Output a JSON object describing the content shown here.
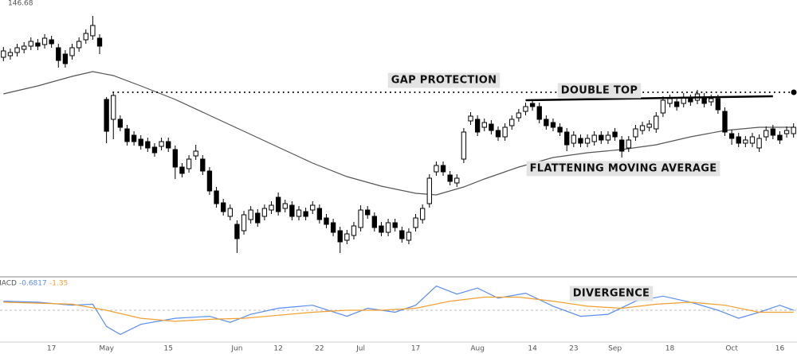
{
  "chart_data": [
    {
      "type": "candlestick",
      "price_label": 146.68,
      "categories": [
        null,
        null,
        null,
        null,
        null,
        null,
        null,
        "17",
        null,
        null,
        null,
        null,
        null,
        null,
        null,
        "May",
        null,
        null,
        null,
        null,
        null,
        null,
        null,
        null,
        "15",
        null,
        null,
        null,
        null,
        null,
        null,
        null,
        null,
        null,
        "Jun",
        null,
        null,
        null,
        null,
        null,
        "12",
        null,
        null,
        null,
        null,
        null,
        "22",
        null,
        null,
        null,
        null,
        null,
        "Jul",
        null,
        null,
        null,
        null,
        null,
        null,
        null,
        "17",
        null,
        null,
        null,
        null,
        null,
        null,
        null,
        null,
        "Aug",
        null,
        null,
        null,
        null,
        null,
        null,
        null,
        "14",
        null,
        null,
        null,
        null,
        null,
        "23",
        null,
        null,
        null,
        null,
        null,
        "Sep",
        null,
        null,
        null,
        null,
        null,
        null,
        null,
        "18",
        null,
        null,
        null,
        null,
        null,
        null,
        null,
        null,
        "Oct",
        null,
        null,
        null,
        null,
        null,
        null,
        "16",
        null,
        null
      ],
      "open": [
        157.8,
        158.0,
        158.4,
        158.8,
        159.2,
        159.6,
        159.4,
        160.0,
        159.0,
        158.2,
        158.0,
        159.0,
        160.0,
        160.5,
        160.2,
        152.5,
        150.0,
        150.0,
        148.8,
        148.0,
        147.5,
        147.2,
        146.5,
        146.6,
        147.2,
        146.2,
        144.0,
        143.8,
        145.4,
        145.0,
        143.5,
        141.0,
        139.5,
        137.8,
        136.8,
        136.0,
        137.4,
        138.2,
        137.8,
        138.6,
        140.2,
        138.8,
        139.2,
        137.8,
        138.4,
        138.6,
        138.8,
        137.6,
        137.0,
        136.0,
        134.8,
        135.4,
        136.4,
        138.6,
        137.8,
        136.6,
        135.8,
        137.0,
        136.0,
        134.8,
        136.4,
        137.4,
        139.4,
        143.4,
        144.2,
        143.0,
        142.0,
        145.0,
        149.8,
        150.0,
        149.0,
        149.4,
        148.6,
        147.8,
        149.2,
        150.2,
        151.0,
        152.0,
        151.6,
        150.0,
        149.6,
        149.0,
        148.4,
        147.0,
        147.6,
        147.0,
        147.2,
        148.0,
        147.4,
        148.4,
        147.4,
        146.4,
        147.8,
        148.6,
        149.0,
        148.8,
        150.8,
        152.0,
        152.2,
        152.0,
        152.6,
        152.4,
        152.8,
        152.2,
        152.6,
        151.0,
        148.2,
        147.8,
        147.0,
        147.0,
        146.4,
        147.8,
        148.8,
        148.0,
        148.2,
        148.2
      ],
      "high": [
        159.1,
        158.9,
        159.5,
        159.7,
        160.3,
        160.1,
        160.7,
        160.5,
        159.5,
        158.7,
        159.5,
        160.3,
        161.3,
        163.0,
        160.7,
        152.8,
        153.5,
        150.5,
        149.3,
        148.5,
        148.0,
        147.7,
        147.0,
        147.7,
        147.7,
        146.7,
        144.5,
        145.5,
        146.8,
        145.5,
        144.0,
        141.5,
        140.0,
        139.3,
        137.3,
        138.5,
        139.1,
        138.7,
        139.3,
        139.7,
        140.8,
        139.9,
        139.7,
        139.1,
        138.9,
        139.7,
        139.3,
        138.1,
        137.5,
        136.5,
        136.1,
        137.1,
        139.2,
        139.1,
        138.3,
        137.1,
        137.5,
        137.5,
        136.5,
        136.3,
        138.1,
        139.3,
        143.1,
        144.7,
        144.7,
        143.5,
        143.1,
        148.9,
        150.9,
        150.5,
        150.1,
        149.9,
        149.1,
        149.5,
        150.5,
        151.3,
        152.1,
        152.5,
        152.1,
        150.5,
        150.1,
        149.5,
        148.9,
        148.5,
        148.1,
        148.1,
        148.5,
        148.5,
        148.5,
        148.9,
        147.9,
        147.9,
        149.3,
        149.7,
        149.9,
        150.9,
        152.9,
        153.1,
        152.7,
        153.3,
        153.1,
        153.7,
        153.3,
        153.1,
        153.1,
        151.5,
        148.7,
        148.3,
        147.9,
        148.3,
        148.1,
        149.1,
        149.3,
        148.5,
        149.1,
        149.5
      ],
      "low": [
        157.3,
        157.5,
        157.9,
        158.3,
        158.7,
        158.7,
        158.9,
        159.0,
        156.5,
        156.5,
        157.5,
        158.5,
        159.5,
        160.0,
        158.2,
        147.0,
        147.5,
        148.5,
        146.7,
        146.7,
        146.2,
        145.9,
        145.3,
        146.1,
        145.9,
        142.5,
        142.7,
        143.3,
        144.9,
        143.0,
        140.5,
        138.9,
        137.9,
        137.3,
        133.2,
        135.5,
        136.9,
        136.5,
        137.3,
        138.1,
        137.9,
        138.3,
        137.3,
        137.3,
        137.3,
        138.1,
        136.9,
        136.3,
        135.3,
        133.2,
        134.3,
        134.9,
        135.9,
        137.5,
        135.9,
        135.3,
        135.3,
        135.9,
        134.5,
        134.3,
        135.9,
        136.9,
        138.9,
        142.9,
        142.9,
        141.7,
        141.5,
        144.5,
        149.3,
        147.9,
        148.5,
        148.1,
        147.3,
        147.3,
        148.7,
        149.7,
        150.5,
        151.1,
        149.5,
        148.7,
        148.5,
        147.9,
        146.0,
        146.5,
        146.5,
        146.5,
        146.7,
        146.9,
        146.9,
        147.3,
        145.2,
        145.9,
        147.3,
        148.1,
        148.5,
        148.3,
        150.3,
        151.5,
        151.1,
        151.5,
        151.7,
        151.9,
        151.5,
        151.7,
        150.7,
        147.9,
        146.8,
        146.5,
        146.5,
        146.5,
        145.9,
        147.3,
        147.5,
        146.9,
        147.7,
        147.7
      ],
      "close": [
        158.6,
        158.4,
        159.0,
        159.2,
        159.8,
        159.2,
        160.2,
        159.5,
        157.4,
        157.0,
        159.0,
        159.8,
        160.8,
        161.8,
        159.2,
        148.5,
        153.0,
        149.0,
        147.2,
        147.2,
        146.7,
        146.4,
        145.8,
        147.2,
        146.4,
        144.0,
        143.2,
        145.0,
        146.0,
        143.5,
        141.0,
        139.4,
        138.4,
        138.8,
        135.0,
        138.0,
        138.6,
        137.0,
        138.8,
        139.2,
        138.4,
        139.4,
        137.8,
        138.6,
        137.8,
        139.2,
        137.4,
        136.8,
        135.8,
        134.6,
        135.6,
        136.6,
        138.6,
        138.0,
        136.4,
        135.8,
        137.0,
        136.4,
        135.0,
        135.8,
        137.6,
        138.8,
        142.6,
        144.2,
        143.4,
        142.2,
        142.6,
        148.4,
        150.4,
        148.4,
        149.6,
        148.6,
        147.8,
        149.0,
        150.0,
        150.8,
        151.6,
        151.6,
        150.0,
        149.2,
        149.0,
        148.4,
        146.8,
        148.0,
        147.0,
        147.6,
        148.0,
        147.4,
        148.0,
        147.8,
        146.0,
        147.4,
        148.8,
        149.2,
        149.4,
        150.4,
        152.4,
        152.6,
        151.6,
        152.8,
        152.2,
        153.2,
        152.0,
        152.6,
        151.2,
        148.4,
        147.6,
        147.0,
        147.4,
        147.8,
        147.6,
        148.6,
        148.0,
        147.4,
        148.6,
        149.0
      ],
      "xlim": [
        -0.5,
        115.5
      ],
      "ylim": [
        130,
        165
      ],
      "candle_colors": {
        "up": "#ffffff",
        "down": "#000000",
        "outline": "#000000"
      },
      "moving_average": {
        "color": "#555555",
        "x": [
          0,
          5,
          10,
          13,
          16,
          20,
          25,
          30,
          35,
          40,
          45,
          50,
          55,
          60,
          63,
          67,
          70,
          75,
          80,
          85,
          90,
          95,
          100,
          105,
          110,
          115
        ],
        "values": [
          153.2,
          154.2,
          155.4,
          156.0,
          155.5,
          154.2,
          152.5,
          150.5,
          148.5,
          146.5,
          144.5,
          142.8,
          141.6,
          140.7,
          140.5,
          141.5,
          142.5,
          144.0,
          145.2,
          145.8,
          146.2,
          146.8,
          147.8,
          148.6,
          149.0,
          149.0
        ]
      },
      "lines": [
        {
          "style": "dotted",
          "x": [
            16,
            115.5
          ],
          "values": [
            153.4,
            153.4
          ]
        },
        {
          "style": "solid",
          "x": [
            76,
            112
          ],
          "values": [
            152.4,
            152.9
          ]
        }
      ],
      "annotations": [
        "GAP PROTECTION",
        "DOUBLE TOP",
        "FLATTENING MOVING AVERAGE"
      ]
    },
    {
      "type": "line",
      "title": "MACD",
      "readout": [
        -0.6817,
        -1.35
      ],
      "xlim": [
        -0.5,
        115.5
      ],
      "ylim": [
        -3,
        3
      ],
      "zero_line": 0,
      "series": [
        {
          "color": "#5b8def",
          "x": [
            0,
            5,
            10,
            13,
            15,
            17,
            20,
            25,
            30,
            33,
            36,
            40,
            45,
            50,
            53,
            57,
            60,
            63,
            66,
            69,
            72,
            76,
            80,
            84,
            88,
            92,
            96,
            100,
            104,
            107,
            110,
            113,
            115
          ],
          "values": [
            0.9,
            0.8,
            0.5,
            0.6,
            -1.6,
            -2.4,
            -1.4,
            -0.8,
            -0.6,
            -1.2,
            -0.4,
            0.2,
            0.5,
            -0.6,
            0.2,
            -0.2,
            0.5,
            2.4,
            1.6,
            2.2,
            1.2,
            1.7,
            0.4,
            -0.6,
            -0.4,
            0.9,
            1.4,
            0.8,
            0,
            -0.8,
            -0.2,
            0.5,
            0
          ]
        },
        {
          "color": "#f0a030",
          "x": [
            0,
            10,
            15,
            20,
            25,
            30,
            35,
            40,
            45,
            50,
            55,
            60,
            65,
            70,
            75,
            80,
            85,
            90,
            95,
            100,
            105,
            110,
            115
          ],
          "values": [
            0.8,
            0.6,
            0,
            -0.8,
            -1.1,
            -0.9,
            -0.8,
            -0.5,
            -0.2,
            0,
            0,
            0.2,
            0.9,
            1.3,
            1.3,
            0.9,
            0.4,
            0.2,
            0.6,
            0.8,
            0.5,
            -0.2,
            -0.2
          ]
        }
      ],
      "annotations": [
        "DIVERGENCE"
      ]
    }
  ]
}
